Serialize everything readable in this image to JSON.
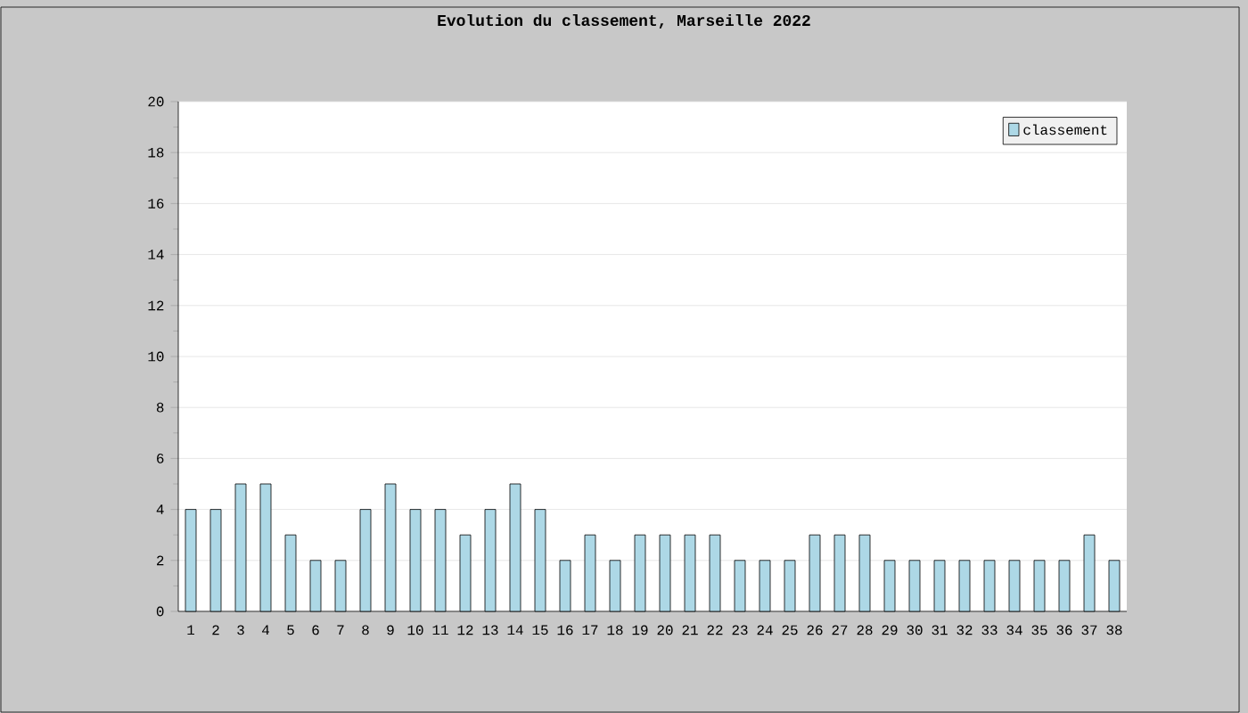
{
  "chart_data": {
    "type": "bar",
    "title": "Evolution du classement, Marseille 2022",
    "categories": [
      "1",
      "2",
      "3",
      "4",
      "5",
      "6",
      "7",
      "8",
      "9",
      "10",
      "11",
      "12",
      "13",
      "14",
      "15",
      "16",
      "17",
      "18",
      "19",
      "20",
      "21",
      "22",
      "23",
      "24",
      "25",
      "26",
      "27",
      "28",
      "29",
      "30",
      "31",
      "32",
      "33",
      "34",
      "35",
      "36",
      "37",
      "38"
    ],
    "series": [
      {
        "name": "classement",
        "color": "#add8e6",
        "values": [
          4,
          4,
          5,
          5,
          3,
          2,
          2,
          4,
          5,
          4,
          4,
          3,
          4,
          5,
          4,
          2,
          3,
          2,
          3,
          3,
          3,
          3,
          2,
          2,
          2,
          3,
          3,
          3,
          2,
          2,
          2,
          2,
          2,
          2,
          2,
          2,
          3,
          2
        ]
      }
    ],
    "ylim": [
      0,
      20
    ],
    "yticks": [
      0,
      2,
      4,
      6,
      8,
      10,
      12,
      14,
      16,
      18,
      20
    ],
    "grid": "y",
    "legend": "top right"
  }
}
